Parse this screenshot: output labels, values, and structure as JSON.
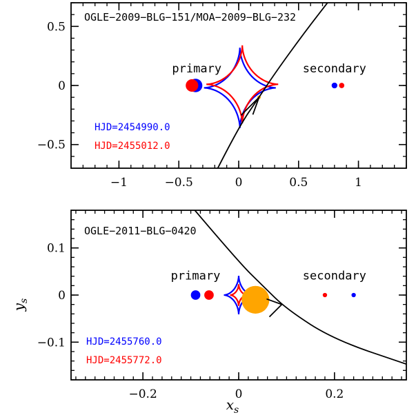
{
  "chart_data": [
    {
      "type": "scatter",
      "title": "OGLE−2009−BLG−151/MOA−2009−BLG−232",
      "xlim": [
        -1.4,
        1.4
      ],
      "ylim": [
        -0.7,
        0.7
      ],
      "xticks": [
        -1,
        -0.5,
        0,
        0.5,
        1
      ],
      "xtick_labels": [
        "−1",
        "−0.5",
        "0",
        "0.5",
        "1"
      ],
      "yticks": [
        -0.5,
        0,
        0.5
      ],
      "ytick_labels": [
        "−0.5",
        "0",
        "0.5"
      ],
      "labels": {
        "primary": "primary",
        "secondary": "secondary"
      },
      "label_positions": {
        "primary": [
          -0.35,
          0.11
        ],
        "secondary": [
          0.8,
          0.11
        ]
      },
      "legend": [
        {
          "label": "HJD=2454990.0",
          "color": "#0000ff"
        },
        {
          "label": "HJD=2455012.0",
          "color": "#ff0000"
        }
      ],
      "epochs": [
        {
          "color": "#0000ff",
          "caustic": {
            "center": [
              0.01,
              -0.02
            ],
            "half_width": 0.3,
            "half_height": 0.34,
            "exponent": 3.4
          },
          "primary": {
            "x": -0.36,
            "y": 0.0,
            "size": 7
          },
          "secondary": {
            "x": 0.8,
            "y": 0.0,
            "size": 2.6
          }
        },
        {
          "color": "#ff0000",
          "caustic": {
            "center": [
              0.03,
              0.01
            ],
            "half_width": 0.3,
            "half_height": 0.33,
            "exponent": 3.4
          },
          "primary": {
            "x": -0.39,
            "y": 0.0,
            "size": 6.5
          },
          "secondary": {
            "x": 0.86,
            "y": 0.0,
            "size": 2.4
          }
        }
      ],
      "source_trajectory": [
        [
          -0.2,
          -0.75
        ],
        [
          0.0,
          -0.35
        ],
        [
          0.17,
          -0.1
        ],
        [
          0.3,
          0.1
        ],
        [
          0.55,
          0.45
        ],
        [
          0.78,
          0.75
        ]
      ],
      "trajectory_arrow": {
        "at": [
          0.17,
          -0.1
        ],
        "direction": "up-right"
      },
      "source": {
        "x": 0.17,
        "y": -0.1,
        "size": 0.012,
        "color": "#ffa500"
      }
    },
    {
      "type": "scatter",
      "title": "OGLE−2011−BLG−0420",
      "xlabel": "x_s",
      "ylabel": "y_s",
      "xlim": [
        -0.35,
        0.35
      ],
      "ylim": [
        -0.18,
        0.18
      ],
      "xticks": [
        -0.2,
        0,
        0.2
      ],
      "xtick_labels": [
        "−0.2",
        "0",
        "0.2"
      ],
      "yticks": [
        -0.1,
        0,
        0.1
      ],
      "ytick_labels": [
        "−0.1",
        "0",
        "0.1"
      ],
      "labels": {
        "primary": "primary",
        "secondary": "secondary"
      },
      "label_positions": {
        "primary": [
          -0.09,
          0.033
        ],
        "secondary": [
          0.2,
          0.033
        ]
      },
      "legend": [
        {
          "label": "HJD=2455760.0",
          "color": "#0000ff"
        },
        {
          "label": "HJD=2455772.0",
          "color": "#ff0000"
        }
      ],
      "epochs": [
        {
          "color": "#0000ff",
          "caustic": {
            "center": [
              0.0,
              0.0
            ],
            "half_width": 0.031,
            "half_height": 0.041,
            "exponent": 3.4
          },
          "primary": {
            "x": -0.09,
            "y": 0.0,
            "size": 0.0076
          },
          "secondary": {
            "x": 0.24,
            "y": 0.0,
            "size": 0.0035
          }
        },
        {
          "color": "#ff0000",
          "caustic": {
            "center": [
              0.0,
              0.0
            ],
            "half_width": 0.018,
            "half_height": 0.023,
            "exponent": 3.4
          },
          "primary": {
            "x": -0.062,
            "y": 0.0,
            "size": 0.0076
          },
          "secondary": {
            "x": 0.18,
            "y": 0.0,
            "size": 0.0035
          }
        }
      ],
      "source_trajectory": [
        [
          -0.1,
          0.19
        ],
        [
          0.0,
          0.07
        ],
        [
          0.05,
          0.02
        ],
        [
          0.1,
          -0.03
        ],
        [
          0.2,
          -0.095
        ],
        [
          0.36,
          -0.15
        ]
      ],
      "trajectory_arrow": {
        "at": [
          0.09,
          -0.02
        ],
        "direction": "up-left"
      },
      "source": {
        "x": 0.035,
        "y": -0.01,
        "size": 0.029,
        "color": "#ffa500"
      }
    }
  ]
}
